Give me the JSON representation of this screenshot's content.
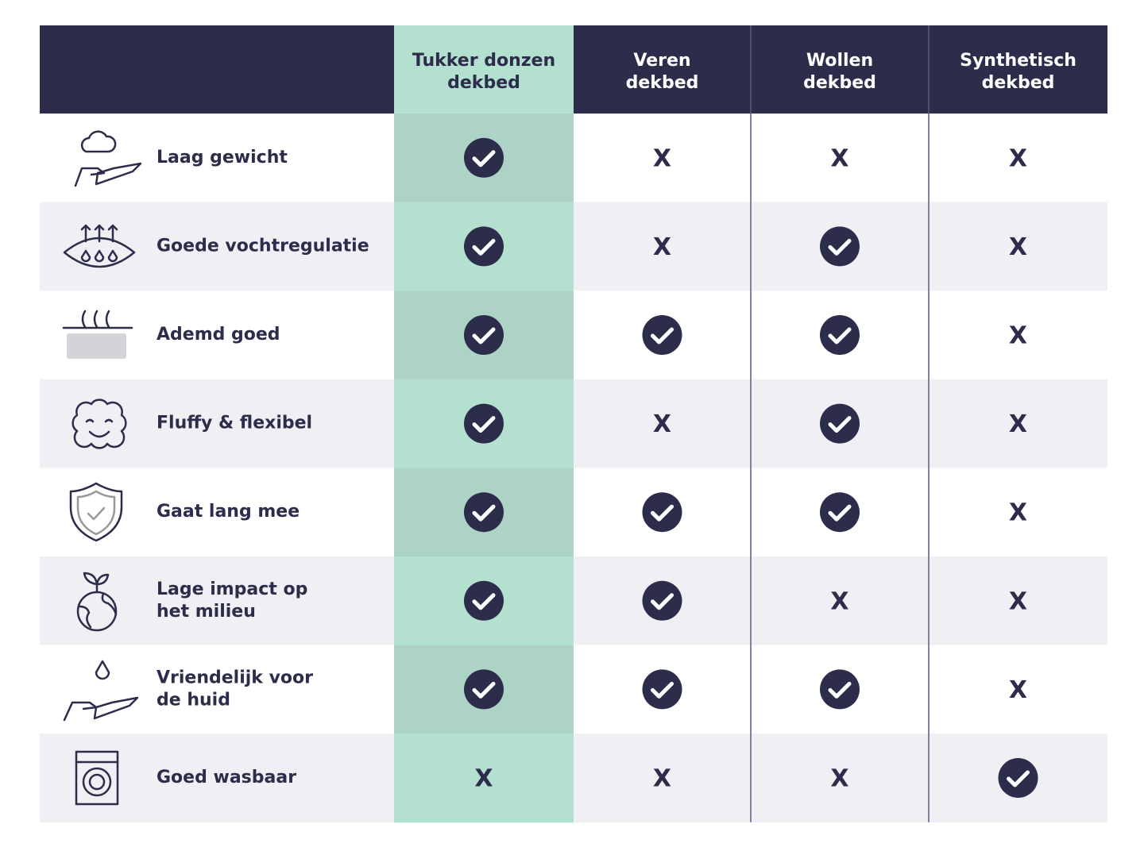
{
  "table": {
    "header": [
      [
        "Tukker donzen",
        "dekbed"
      ],
      [
        "Veren",
        "dekbed"
      ],
      [
        "Wollen",
        "dekbed"
      ],
      [
        "Synthetisch",
        "dekbed"
      ]
    ],
    "rows": [
      {
        "label": [
          "Laag gewicht"
        ],
        "cells": [
          null,
          "X",
          "X",
          "X"
        ]
      },
      {
        "label": [
          "Goede vochtregulatie"
        ],
        "cells": [
          null,
          "X",
          null,
          "X"
        ]
      },
      {
        "label": [
          "Ademd goed"
        ],
        "cells": [
          null,
          null,
          null,
          "X"
        ]
      },
      {
        "label": [
          "Fluffy & flexibel"
        ],
        "cells": [
          null,
          "X",
          null,
          "X"
        ]
      },
      {
        "label": [
          "Gaat lang mee"
        ],
        "cells": [
          null,
          null,
          null,
          "X"
        ]
      },
      {
        "label": [
          "Lage impact op",
          "het milieu"
        ],
        "cells": [
          null,
          null,
          "X",
          "X"
        ]
      },
      {
        "label": [
          "Vriendelijk voor",
          "de huid"
        ],
        "cells": [
          null,
          null,
          null,
          "X"
        ]
      },
      {
        "label": [
          "Goed wasbaar"
        ],
        "cells": [
          "X",
          "X",
          "X",
          null
        ]
      }
    ]
  }
}
